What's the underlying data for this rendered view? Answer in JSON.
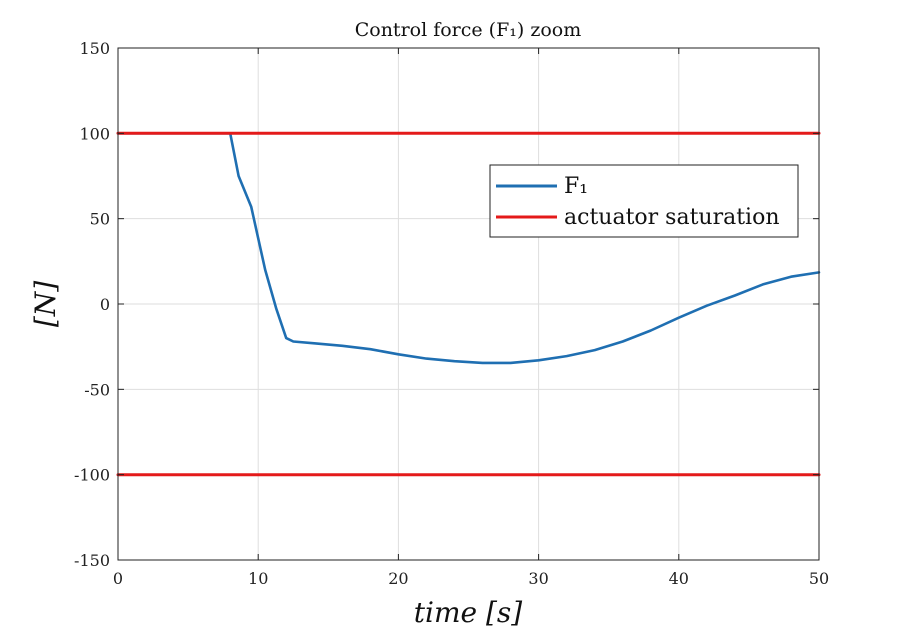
{
  "chart_data": {
    "type": "line",
    "title": "Control force (F₁) zoom",
    "xlabel": "time [s]",
    "ylabel": "[N]",
    "xlim": [
      0,
      50
    ],
    "ylim": [
      -150,
      150
    ],
    "xticks": [
      0,
      10,
      20,
      30,
      40,
      50
    ],
    "yticks": [
      -150,
      -100,
      -50,
      0,
      50,
      100,
      150
    ],
    "xtick_labels": [
      "0",
      "10",
      "20",
      "30",
      "40",
      "50"
    ],
    "ytick_labels": [
      "-150",
      "-100",
      "-50",
      "0",
      "50",
      "100",
      "150"
    ],
    "grid": true,
    "legend_position": "upper-right-inside",
    "series": [
      {
        "name": "F₁",
        "color": "#1f6fb2",
        "x": [
          0,
          8.0,
          8.6,
          9.5,
          10.5,
          11.3,
          12.0,
          12.5,
          14,
          16,
          18,
          20,
          22,
          24,
          26,
          28,
          30,
          32,
          34,
          36,
          38,
          40,
          42,
          44,
          46,
          48,
          50
        ],
        "y": [
          100,
          100,
          75,
          57,
          20,
          -3,
          -20,
          -22,
          -23,
          -24.5,
          -26.5,
          -29.5,
          -32,
          -33.5,
          -34.5,
          -34.5,
          -33,
          -30.5,
          -27,
          -22,
          -15.5,
          -8,
          -1,
          5,
          11.5,
          16,
          18.5
        ]
      },
      {
        "name": "actuator saturation",
        "color": "#e41a1a",
        "x": [
          0,
          50
        ],
        "y": [
          100,
          100
        ]
      },
      {
        "name": "actuator saturation (lower)",
        "color": "#e41a1a",
        "x": [
          0,
          50
        ],
        "y": [
          -100,
          -100
        ]
      }
    ],
    "legend": [
      {
        "label": "F₁",
        "color": "#1f6fb2"
      },
      {
        "label": "actuator saturation",
        "color": "#e41a1a"
      }
    ]
  }
}
